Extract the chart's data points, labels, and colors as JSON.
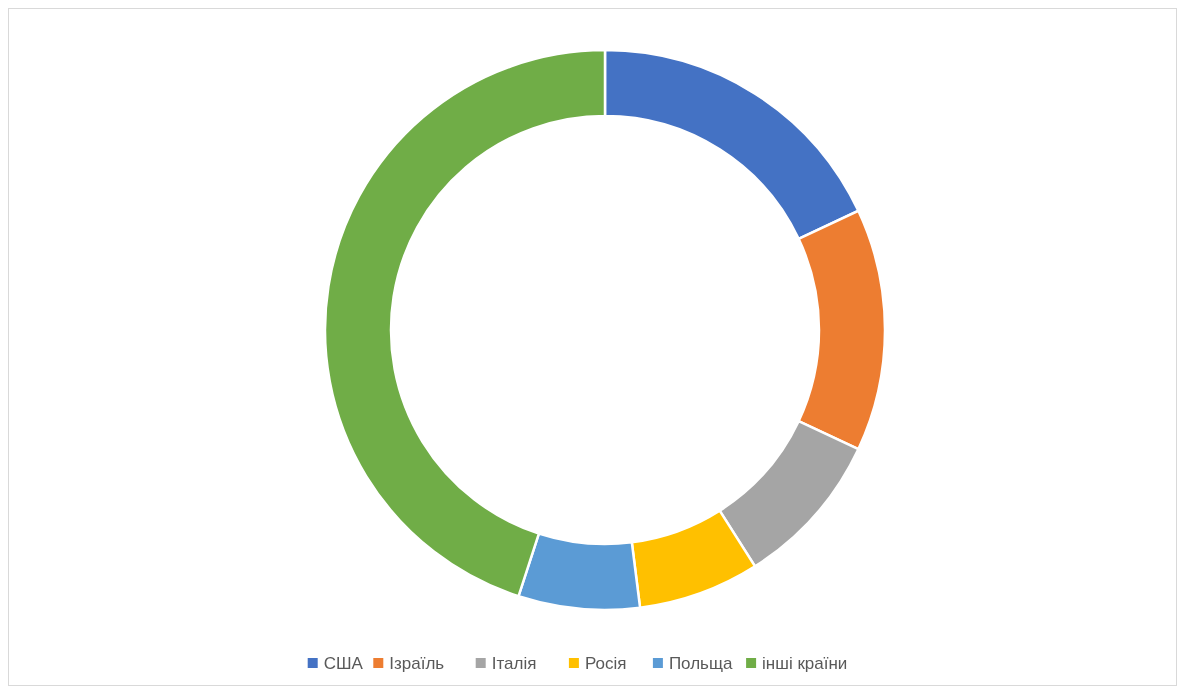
{
  "chart_data": {
    "type": "donut",
    "categories": [
      "США",
      "Ізраїль",
      "Італія",
      "Росія",
      "Польща",
      "інші країни"
    ],
    "values": [
      18,
      14,
      9,
      7,
      7,
      45
    ],
    "colors": [
      "#4472c4",
      "#ed7d31",
      "#a5a5a5",
      "#ffc000",
      "#5b9bd5",
      "#70ad47"
    ],
    "legend": "bottom"
  }
}
